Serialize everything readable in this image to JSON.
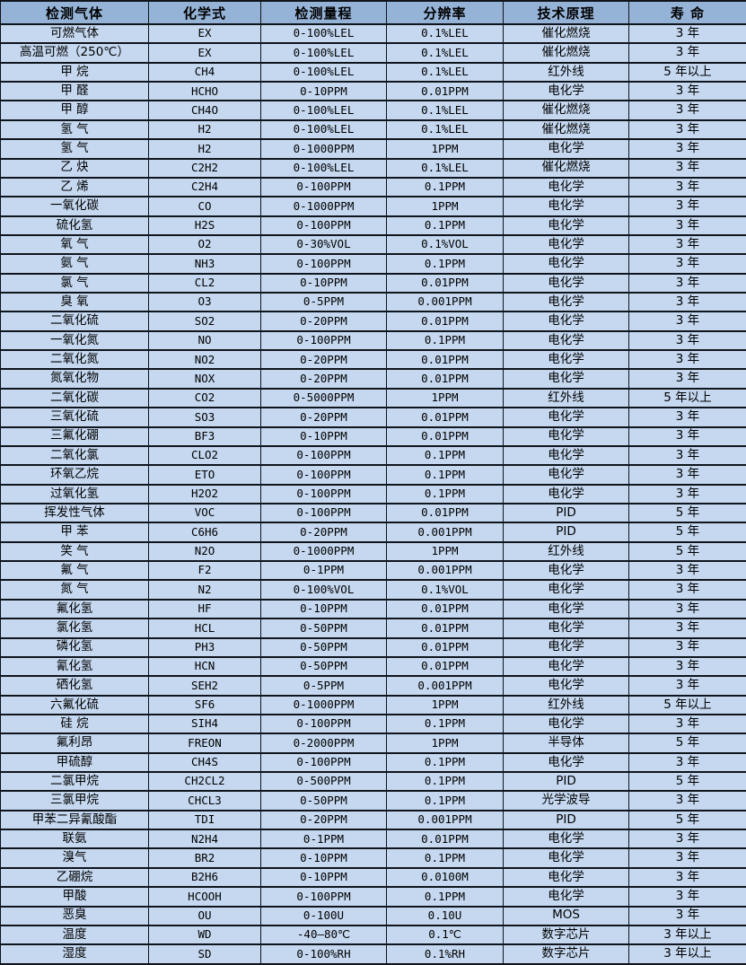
{
  "colors": {
    "header_bg": "#95b3d7",
    "row_bg": "#c5d8f0",
    "border": "#10141c",
    "text": "#000000"
  },
  "table": {
    "columns": [
      {
        "key": "gas",
        "label": "检测气体"
      },
      {
        "key": "formula",
        "label": "化学式"
      },
      {
        "key": "range",
        "label": "检测量程"
      },
      {
        "key": "resolution",
        "label": "分辨率"
      },
      {
        "key": "principle",
        "label": "技术原理"
      },
      {
        "key": "lifespan",
        "label": "寿  命"
      }
    ],
    "rows": [
      [
        "可燃气体",
        "EX",
        "0-100%LEL",
        "0.1%LEL",
        "催化燃烧",
        "3 年"
      ],
      [
        "高温可燃（250℃）",
        "EX",
        "0-100%LEL",
        "0.1%LEL",
        "催化燃烧",
        "3 年"
      ],
      [
        "甲  烷",
        "CH4",
        "0-100%LEL",
        "0.1%LEL",
        "红外线",
        "5 年以上"
      ],
      [
        "甲  醛",
        "HCHO",
        "0-10PPM",
        "0.01PPM",
        "电化学",
        "3 年"
      ],
      [
        "甲  醇",
        "CH4O",
        "0-100%LEL",
        "0.1%LEL",
        "催化燃烧",
        "3 年"
      ],
      [
        "氢  气",
        "H2",
        "0-100%LEL",
        "0.1%LEL",
        "催化燃烧",
        "3 年"
      ],
      [
        "氢  气",
        "H2",
        "0-1000PPM",
        "1PPM",
        "电化学",
        "3 年"
      ],
      [
        "乙  炔",
        "C2H2",
        "0-100%LEL",
        "0.1%LEL",
        "催化燃烧",
        "3 年"
      ],
      [
        "乙  烯",
        "C2H4",
        "0-100PPM",
        "0.1PPM",
        "电化学",
        "3 年"
      ],
      [
        "一氧化碳",
        "CO",
        "0-1000PPM",
        "1PPM",
        "电化学",
        "3 年"
      ],
      [
        "硫化氢",
        "H2S",
        "0-100PPM",
        "0.1PPM",
        "电化学",
        "3 年"
      ],
      [
        "氧  气",
        "O2",
        "0-30%VOL",
        "0.1%VOL",
        "电化学",
        "3 年"
      ],
      [
        "氨  气",
        "NH3",
        "0-100PPM",
        "0.1PPM",
        "电化学",
        "3 年"
      ],
      [
        "氯  气",
        "CL2",
        "0-10PPM",
        "0.01PPM",
        "电化学",
        "3 年"
      ],
      [
        "臭  氧",
        "O3",
        "0-5PPM",
        "0.001PPM",
        "电化学",
        "3 年"
      ],
      [
        "二氧化硫",
        "SO2",
        "0-20PPM",
        "0.01PPM",
        "电化学",
        "3 年"
      ],
      [
        "一氧化氮",
        "NO",
        "0-100PPM",
        "0.1PPM",
        "电化学",
        "3 年"
      ],
      [
        "二氧化氮",
        "NO2",
        "0-20PPM",
        "0.01PPM",
        "电化学",
        "3 年"
      ],
      [
        "氮氧化物",
        "NOX",
        "0-20PPM",
        "0.01PPM",
        "电化学",
        "3 年"
      ],
      [
        "二氧化碳",
        "CO2",
        "0-5000PPM",
        "1PPM",
        "红外线",
        "5 年以上"
      ],
      [
        "三氧化硫",
        "SO3",
        "0-20PPM",
        "0.01PPM",
        "电化学",
        "3 年"
      ],
      [
        "三氟化硼",
        "BF3",
        "0-10PPM",
        "0.01PPM",
        "电化学",
        "3 年"
      ],
      [
        "二氧化氯",
        "CLO2",
        "0-100PPM",
        "0.1PPM",
        "电化学",
        "3 年"
      ],
      [
        "环氧乙烷",
        "ETO",
        "0-100PPM",
        "0.1PPM",
        "电化学",
        "3 年"
      ],
      [
        "过氧化氢",
        "H2O2",
        "0-100PPM",
        "0.1PPM",
        "电化学",
        "3 年"
      ],
      [
        "挥发性气体",
        "VOC",
        "0-100PPM",
        "0.01PPM",
        "PID",
        "5 年"
      ],
      [
        "甲  苯",
        "C6H6",
        "0-20PPM",
        "0.001PPM",
        "PID",
        "5 年"
      ],
      [
        "笑  气",
        "N2O",
        "0-1000PPM",
        "1PPM",
        "红外线",
        "5 年"
      ],
      [
        "氟  气",
        "F2",
        "0-1PPM",
        "0.001PPM",
        "电化学",
        "3 年"
      ],
      [
        "氮  气",
        "N2",
        "0-100%VOL",
        "0.1%VOL",
        "电化学",
        "3 年"
      ],
      [
        "氟化氢",
        "HF",
        "0-10PPM",
        "0.01PPM",
        "电化学",
        "3 年"
      ],
      [
        "氯化氢",
        "HCL",
        "0-50PPM",
        "0.01PPM",
        "电化学",
        "3 年"
      ],
      [
        "磷化氢",
        "PH3",
        "0-50PPM",
        "0.01PPM",
        "电化学",
        "3 年"
      ],
      [
        "氰化氢",
        "HCN",
        "0-50PPM",
        "0.01PPM",
        "电化学",
        "3 年"
      ],
      [
        "硒化氢",
        "SEH2",
        "0-5PPM",
        "0.001PPM",
        "电化学",
        "3 年"
      ],
      [
        "六氟化硫",
        "SF6",
        "0-1000PPM",
        "1PPM",
        "红外线",
        "5 年以上"
      ],
      [
        "硅  烷",
        "SIH4",
        "0-100PPM",
        "0.1PPM",
        "电化学",
        "3 年"
      ],
      [
        "氟利昂",
        "FREON",
        "0-2000PPM",
        "1PPM",
        "半导体",
        "5 年"
      ],
      [
        "甲硫醇",
        "CH4S",
        "0-100PPM",
        "0.1PPM",
        "电化学",
        "3 年"
      ],
      [
        "二氯甲烷",
        "CH2CL2",
        "0-500PPM",
        "0.1PPM",
        "PID",
        "5 年"
      ],
      [
        "三氯甲烷",
        "CHCL3",
        "0-50PPM",
        "0.1PPM",
        "光学波导",
        "3 年"
      ],
      [
        "甲苯二异氰酸酯",
        "TDI",
        "0-20PPM",
        "0.001PPM",
        "PID",
        "5 年"
      ],
      [
        "联氨",
        "N2H4",
        "0-1PPM",
        "0.01PPM",
        "电化学",
        "3 年"
      ],
      [
        "溴气",
        "BR2",
        "0-10PPM",
        "0.1PPM",
        "电化学",
        "3 年"
      ],
      [
        "乙硼烷",
        "B2H6",
        "0-10PPM",
        "0.0100M",
        "电化学",
        "3 年"
      ],
      [
        "甲酸",
        "HCOOH",
        "0-100PPM",
        "0.1PPM",
        "电化学",
        "3 年"
      ],
      [
        "恶臭",
        "OU",
        "0-100U",
        "0.10U",
        "MOS",
        "3 年"
      ],
      [
        "温度",
        "WD",
        "-40—80℃",
        "0.1℃",
        "数字芯片",
        "3 年以上"
      ],
      [
        "湿度",
        "SD",
        "0-100%RH",
        "0.1%RH",
        "数字芯片",
        "3 年以上"
      ]
    ]
  }
}
